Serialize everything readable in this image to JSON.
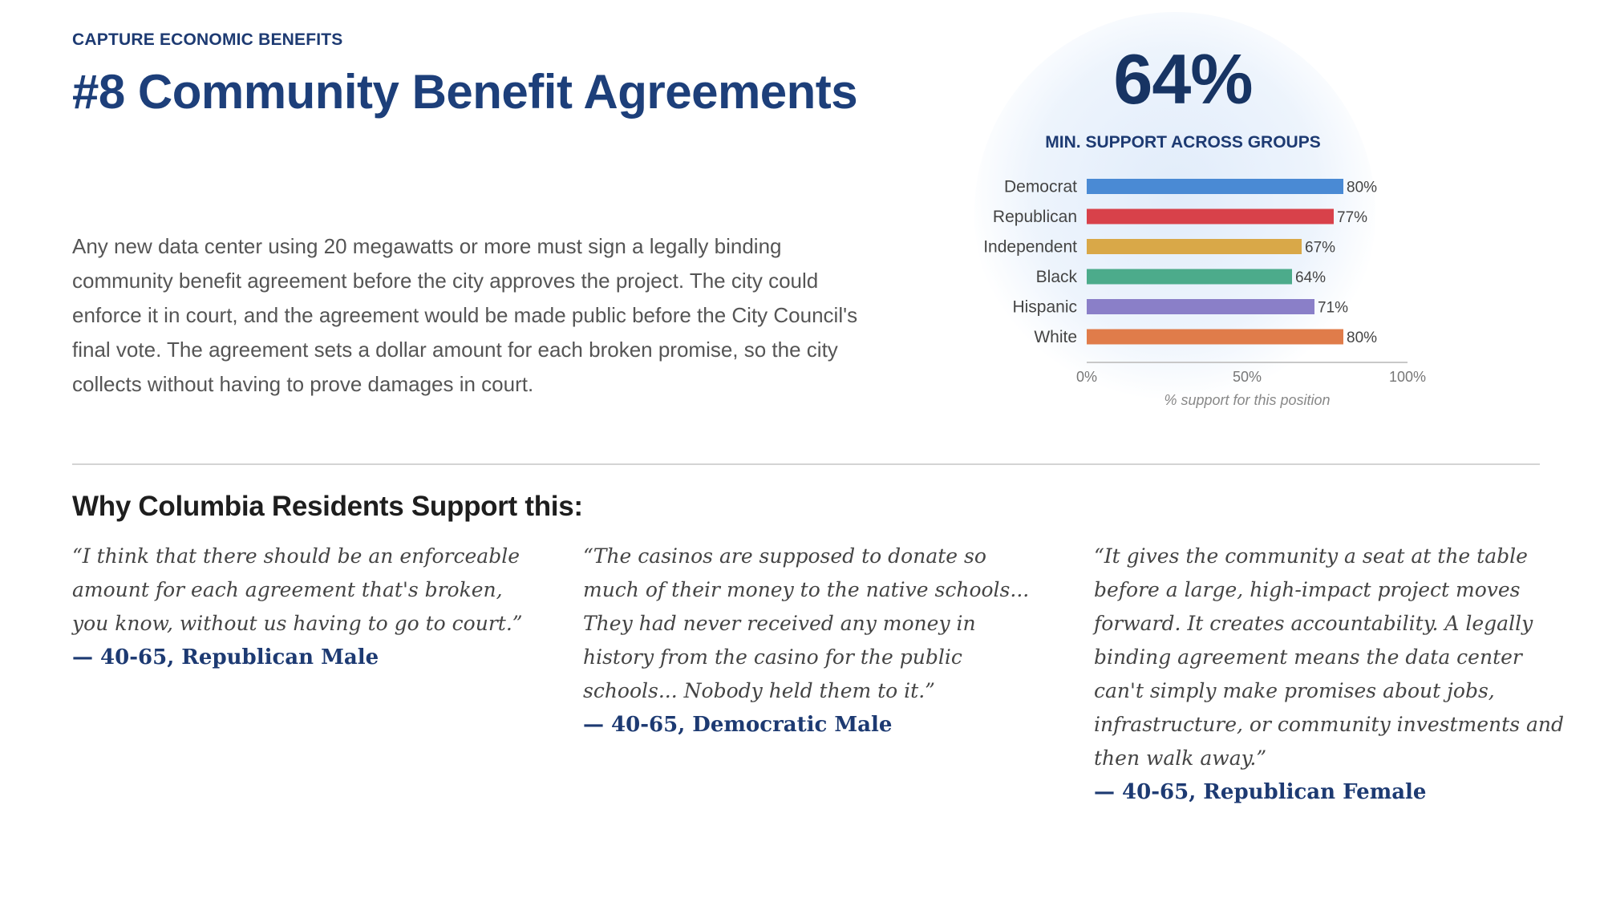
{
  "header": {
    "eyebrow": "CAPTURE ECONOMIC BENEFITS",
    "title": "#8 Community Benefit Agreements"
  },
  "description": "Any new data center using 20 megawatts or more must sign a legally binding community benefit agreement before the city approves the project. The city could enforce it in court, and the agreement would be made public before the City Council's final vote. The agreement sets a dollar amount for each broken promise, so the city collects without having to prove damages in court.",
  "stat": {
    "value": "64%",
    "label": "MIN. SUPPORT ACROSS GROUPS"
  },
  "chart_data": {
    "type": "bar",
    "orientation": "horizontal",
    "categories": [
      "Democrat",
      "Republican",
      "Independent",
      "Black",
      "Hispanic",
      "White"
    ],
    "values": [
      80,
      77,
      67,
      64,
      71,
      80
    ],
    "data_labels": [
      "80%",
      "77%",
      "67%",
      "64%",
      "71%",
      "80%"
    ],
    "colors": [
      "#4a8ad4",
      "#d8414a",
      "#d9a848",
      "#4cab8b",
      "#8a7fc8",
      "#e07c4a"
    ],
    "xlim": [
      0,
      100
    ],
    "xticks": [
      0,
      50,
      100
    ],
    "xtick_labels": [
      "0%",
      "50%",
      "100%"
    ],
    "xlabel": "% support for this position",
    "grid": false
  },
  "quotes_section": {
    "heading": "Why Columbia Residents Support this:",
    "quotes": [
      {
        "text": "“I think that there should be an enforceable amount for each agreement that's broken, you know, without us having to go to court.”",
        "attribution": "— 40-65, Republican Male"
      },
      {
        "text": "“The casinos are supposed to donate so much of their money to the native schools... They had never received any money in history from the casino for the public schools... Nobody held them to it.”",
        "attribution": "— 40-65, Democratic Male"
      },
      {
        "text": "“It gives the community a seat at the table before a large, high-impact project moves forward. It creates accountability. A legally binding agreement means the data center can't simply make promises about jobs, infrastructure, or community investments and then walk away.”",
        "attribution": "— 40-65, Republican Female"
      }
    ]
  }
}
